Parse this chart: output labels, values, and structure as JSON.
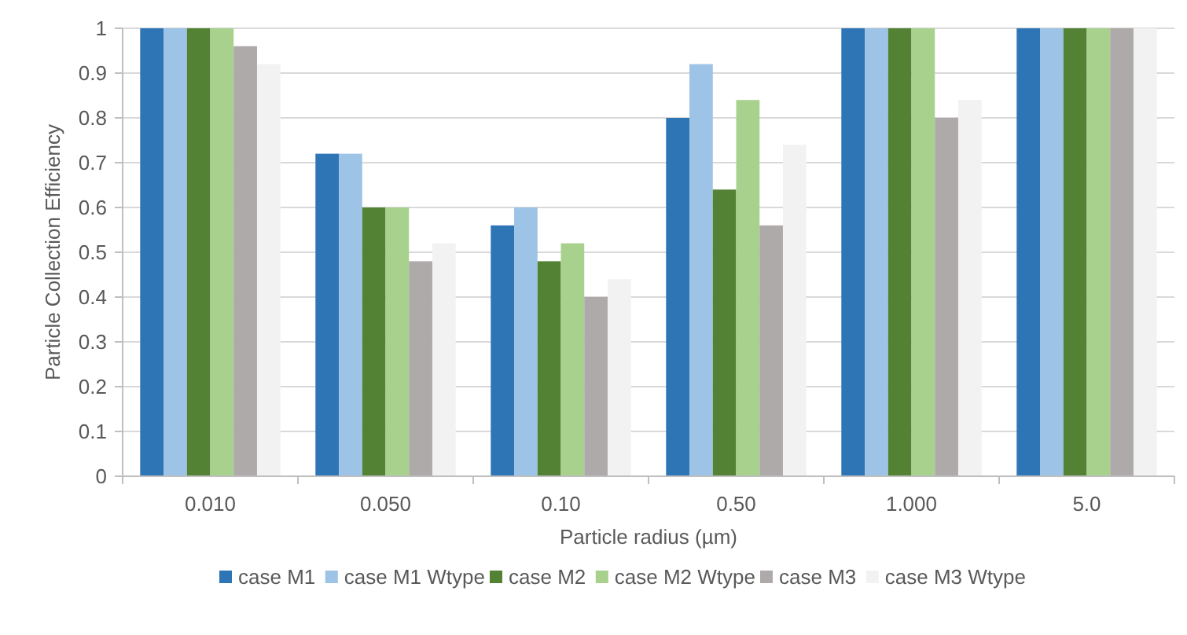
{
  "chart_data": {
    "type": "bar",
    "xlabel": "Particle radius (µm)",
    "ylabel": "Particle Collection Efficiency",
    "categories": [
      "0.010",
      "0.050",
      "0.10",
      "0.50",
      "1.000",
      "5.0"
    ],
    "series": [
      {
        "name": "case M1",
        "color": "#2e75b6",
        "values": [
          1,
          0.72,
          0.56,
          0.8,
          1,
          1
        ]
      },
      {
        "name": "case M1 Wtype",
        "color": "#9dc3e6",
        "values": [
          1,
          0.72,
          0.6,
          0.92,
          1,
          1
        ]
      },
      {
        "name": "case M2",
        "color": "#548235",
        "values": [
          1,
          0.6,
          0.48,
          0.64,
          1,
          1
        ]
      },
      {
        "name": "case M2 Wtype",
        "color": "#a9d18e",
        "values": [
          1,
          0.6,
          0.52,
          0.84,
          1,
          1
        ]
      },
      {
        "name": "case M3",
        "color": "#aeaaaa",
        "values": [
          0.96,
          0.48,
          0.4,
          0.56,
          0.8,
          1
        ]
      },
      {
        "name": "case M3 Wtype",
        "color": "#f2f2f2",
        "values": [
          0.92,
          0.52,
          0.44,
          0.74,
          0.84,
          1
        ]
      }
    ],
    "ylim": [
      0,
      1
    ],
    "yticks": [
      0,
      0.1,
      0.2,
      0.3,
      0.4,
      0.5,
      0.6,
      0.7,
      0.8,
      0.9,
      1
    ],
    "grid": "y",
    "legend": "bottom"
  }
}
